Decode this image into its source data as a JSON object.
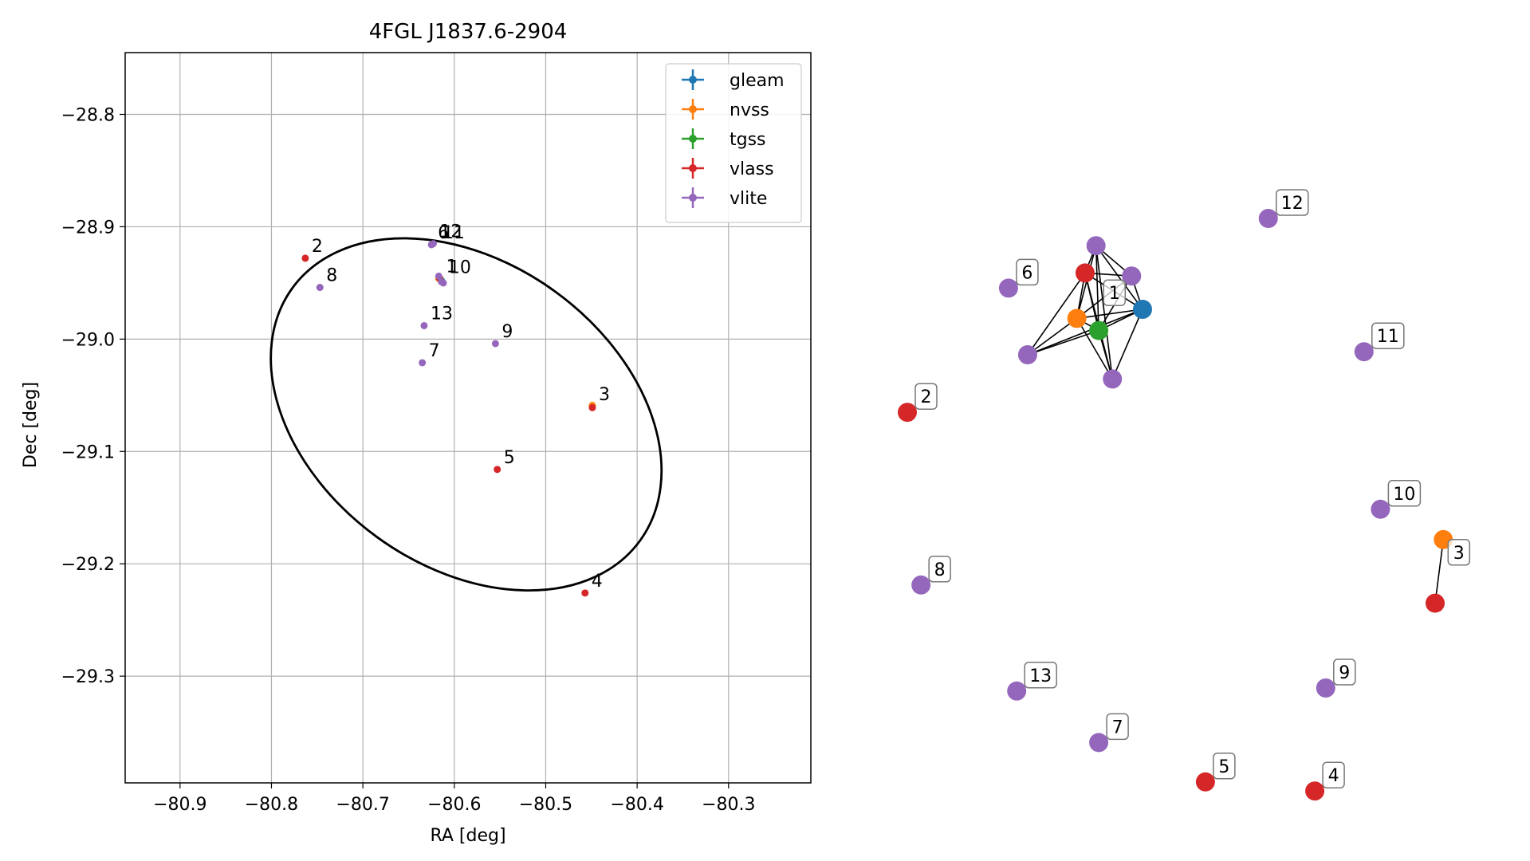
{
  "chart_data": [
    {
      "type": "scatter",
      "title": "4FGL J1837.6-2904",
      "xlabel": "RA [deg]",
      "ylabel": "Dec [deg]",
      "xlim": [
        -80.96,
        -80.21
      ],
      "ylim": [
        -29.395,
        -28.745
      ],
      "xticks": [
        -80.9,
        -80.8,
        -80.7,
        -80.6,
        -80.5,
        -80.4,
        -80.3
      ],
      "xtick_labels": [
        "−80.9",
        "−80.8",
        "−80.7",
        "−80.6",
        "−80.5",
        "−80.4",
        "−80.3"
      ],
      "yticks": [
        -28.8,
        -28.9,
        -29.0,
        -29.1,
        -29.2,
        -29.3
      ],
      "ytick_labels": [
        "−28.8",
        "−28.9",
        "−29.0",
        "−29.1",
        "−29.2",
        "−29.3"
      ],
      "grid": true,
      "legend_position": "top-right",
      "series": [
        {
          "name": "gleam",
          "color": "#1f77b4",
          "points": [
            {
              "ra": -80.614,
              "dec": -28.948
            }
          ]
        },
        {
          "name": "nvss",
          "color": "#ff7f0e",
          "points": [
            {
              "ra": -80.617,
              "dec": -28.946
            },
            {
              "ra": -80.449,
              "dec": -29.059
            }
          ]
        },
        {
          "name": "tgss",
          "color": "#2ca02c",
          "points": [
            {
              "ra": -80.615,
              "dec": -28.947
            }
          ]
        },
        {
          "name": "vlass",
          "color": "#d62728",
          "points": [
            {
              "ra": -80.616,
              "dec": -28.946
            },
            {
              "ra": -80.763,
              "dec": -28.928
            },
            {
              "ra": -80.449,
              "dec": -29.061
            },
            {
              "ra": -80.457,
              "dec": -29.226
            },
            {
              "ra": -80.553,
              "dec": -29.116
            }
          ]
        },
        {
          "name": "vlite",
          "color": "#9467bd",
          "points": [
            {
              "ra": -80.625,
              "dec": -28.916
            },
            {
              "ra": -80.747,
              "dec": -28.954
            },
            {
              "ra": -80.635,
              "dec": -29.021
            },
            {
              "ra": -80.555,
              "dec": -29.004
            },
            {
              "ra": -80.614,
              "dec": -28.949
            },
            {
              "ra": -80.623,
              "dec": -28.915
            },
            {
              "ra": -80.633,
              "dec": -28.988
            },
            {
              "ra": -80.617,
              "dec": -28.944
            },
            {
              "ra": -80.612,
              "dec": -28.95
            }
          ]
        }
      ],
      "labels": [
        {
          "text": "2",
          "ra": -80.763,
          "dec": -28.928
        },
        {
          "text": "8",
          "ra": -80.747,
          "dec": -28.954
        },
        {
          "text": "6",
          "ra": -80.625,
          "dec": -28.916
        },
        {
          "text": "12",
          "ra": -80.623,
          "dec": -28.915
        },
        {
          "text": "11",
          "ra": -80.62,
          "dec": -28.916
        },
        {
          "text": "1",
          "ra": -80.616,
          "dec": -28.946
        },
        {
          "text": "10",
          "ra": -80.613,
          "dec": -28.947
        },
        {
          "text": "13",
          "ra": -80.633,
          "dec": -28.988
        },
        {
          "text": "9",
          "ra": -80.555,
          "dec": -29.004
        },
        {
          "text": "7",
          "ra": -80.635,
          "dec": -29.021
        },
        {
          "text": "3",
          "ra": -80.449,
          "dec": -29.06
        },
        {
          "text": "5",
          "ra": -80.553,
          "dec": -29.116
        },
        {
          "text": "4",
          "ra": -80.457,
          "dec": -29.226
        }
      ],
      "ellipse": {
        "center_ra": -80.587,
        "center_dec": -29.067,
        "semi_major_deg": 0.235,
        "semi_minor_deg": 0.135,
        "angle_deg": -36
      }
    },
    {
      "type": "network",
      "node_size": 12,
      "nodes": [
        {
          "id": "n1-gleam",
          "survey": "gleam",
          "color": "#1f77b4",
          "x": 0.43,
          "y": 0.25
        },
        {
          "id": "n1-nvss",
          "survey": "nvss",
          "color": "#ff7f0e",
          "x": 0.31,
          "y": 0.265
        },
        {
          "id": "n1-tgss",
          "survey": "tgss",
          "color": "#2ca02c",
          "x": 0.35,
          "y": 0.285
        },
        {
          "id": "n1-vlass",
          "survey": "vlass",
          "color": "#d62728",
          "x": 0.325,
          "y": 0.19
        },
        {
          "id": "n1-vlite-a",
          "survey": "vlite",
          "color": "#9467bd",
          "x": 0.345,
          "y": 0.145
        },
        {
          "id": "n1-vlite-b",
          "survey": "vlite",
          "color": "#9467bd",
          "x": 0.41,
          "y": 0.195
        },
        {
          "id": "n1-vlite-c",
          "survey": "vlite",
          "color": "#9467bd",
          "x": 0.22,
          "y": 0.325
        },
        {
          "id": "n1-vlite-d",
          "survey": "vlite",
          "color": "#9467bd",
          "x": 0.375,
          "y": 0.365
        },
        {
          "id": "n2",
          "survey": "vlass",
          "color": "#d62728",
          "x": 0.0,
          "y": 0.42
        },
        {
          "id": "n6",
          "survey": "vlite",
          "color": "#9467bd",
          "x": 0.185,
          "y": 0.215
        },
        {
          "id": "n12",
          "survey": "vlite",
          "color": "#9467bd",
          "x": 0.66,
          "y": 0.1
        },
        {
          "id": "n11",
          "survey": "vlite",
          "color": "#9467bd",
          "x": 0.835,
          "y": 0.32
        },
        {
          "id": "n10",
          "survey": "vlite",
          "color": "#9467bd",
          "x": 0.865,
          "y": 0.58
        },
        {
          "id": "n3-nvss",
          "survey": "nvss",
          "color": "#ff7f0e",
          "x": 0.98,
          "y": 0.63
        },
        {
          "id": "n3-vlass",
          "survey": "vlass",
          "color": "#d62728",
          "x": 0.965,
          "y": 0.735
        },
        {
          "id": "n8",
          "survey": "vlite",
          "color": "#9467bd",
          "x": 0.025,
          "y": 0.705
        },
        {
          "id": "n13",
          "survey": "vlite",
          "color": "#9467bd",
          "x": 0.2,
          "y": 0.88
        },
        {
          "id": "n9",
          "survey": "vlite",
          "color": "#9467bd",
          "x": 0.765,
          "y": 0.875
        },
        {
          "id": "n7",
          "survey": "vlite",
          "color": "#9467bd",
          "x": 0.35,
          "y": 0.965
        },
        {
          "id": "n5",
          "survey": "vlass",
          "color": "#d62728",
          "x": 0.545,
          "y": 1.03
        },
        {
          "id": "n4",
          "survey": "vlass",
          "color": "#d62728",
          "x": 0.745,
          "y": 1.045
        }
      ],
      "edges": [
        [
          "n1-vlass",
          "n1-vlite-a"
        ],
        [
          "n1-vlass",
          "n1-vlite-b"
        ],
        [
          "n1-vlass",
          "n1-gleam"
        ],
        [
          "n1-vlass",
          "n1-nvss"
        ],
        [
          "n1-vlass",
          "n1-tgss"
        ],
        [
          "n1-vlass",
          "n1-vlite-c"
        ],
        [
          "n1-vlass",
          "n1-vlite-d"
        ],
        [
          "n1-vlite-a",
          "n1-vlite-b"
        ],
        [
          "n1-vlite-a",
          "n1-gleam"
        ],
        [
          "n1-vlite-a",
          "n1-nvss"
        ],
        [
          "n1-vlite-a",
          "n1-tgss"
        ],
        [
          "n1-vlite-a",
          "n1-vlite-d"
        ],
        [
          "n1-vlite-b",
          "n1-gleam"
        ],
        [
          "n1-vlite-b",
          "n1-nvss"
        ],
        [
          "n1-vlite-b",
          "n1-tgss"
        ],
        [
          "n1-gleam",
          "n1-nvss"
        ],
        [
          "n1-gleam",
          "n1-tgss"
        ],
        [
          "n1-gleam",
          "n1-vlite-c"
        ],
        [
          "n1-gleam",
          "n1-vlite-d"
        ],
        [
          "n1-nvss",
          "n1-tgss"
        ],
        [
          "n1-nvss",
          "n1-vlite-c"
        ],
        [
          "n1-nvss",
          "n1-vlite-d"
        ],
        [
          "n1-tgss",
          "n1-vlite-c"
        ],
        [
          "n1-tgss",
          "n1-vlite-d"
        ],
        [
          "n3-nvss",
          "n3-vlass"
        ]
      ],
      "labels": [
        {
          "text": "1",
          "node": "n1-vlite-b",
          "dx": -35,
          "dy": 5
        },
        {
          "text": "2",
          "node": "n2",
          "dx": 10,
          "dy": -36
        },
        {
          "text": "6",
          "node": "n6",
          "dx": 10,
          "dy": -36
        },
        {
          "text": "12",
          "node": "n12",
          "dx": 10,
          "dy": -36
        },
        {
          "text": "11",
          "node": "n11",
          "dx": 10,
          "dy": -36
        },
        {
          "text": "10",
          "node": "n10",
          "dx": 10,
          "dy": -36
        },
        {
          "text": "3",
          "node": "n3-nvss",
          "dx": 6,
          "dy": 0
        },
        {
          "text": "8",
          "node": "n8",
          "dx": 10,
          "dy": -36
        },
        {
          "text": "13",
          "node": "n13",
          "dx": 10,
          "dy": -36
        },
        {
          "text": "9",
          "node": "n9",
          "dx": 10,
          "dy": -36
        },
        {
          "text": "7",
          "node": "n7",
          "dx": 10,
          "dy": -36
        },
        {
          "text": "5",
          "node": "n5",
          "dx": 10,
          "dy": -36
        },
        {
          "text": "4",
          "node": "n4",
          "dx": 10,
          "dy": -36
        }
      ]
    }
  ]
}
